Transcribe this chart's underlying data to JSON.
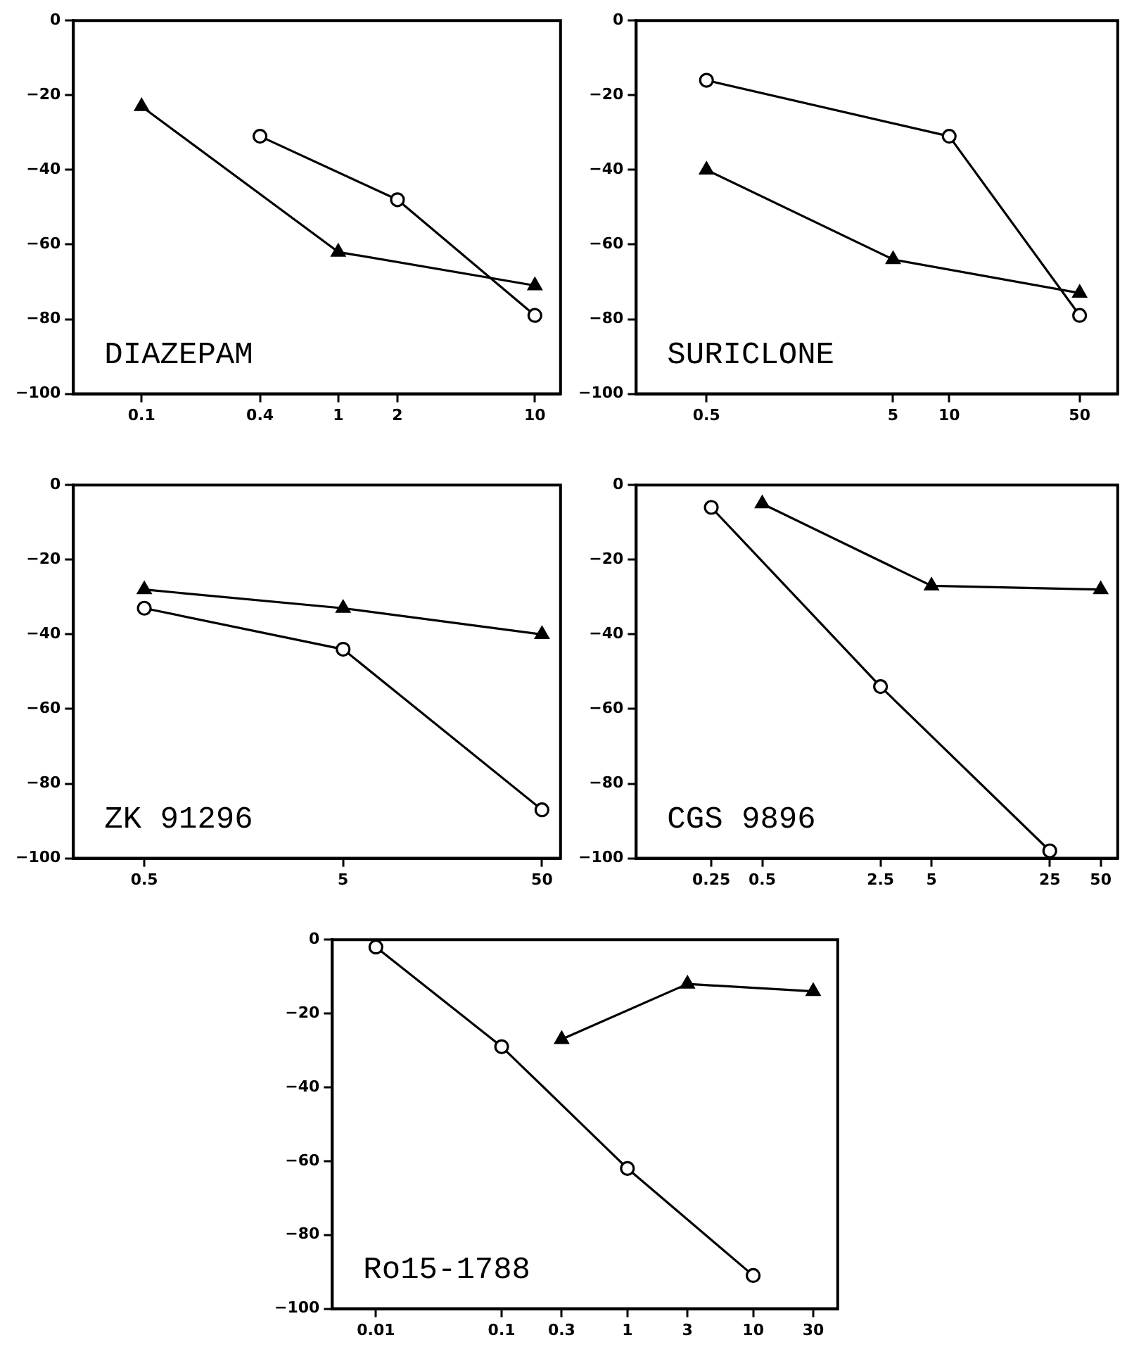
{
  "chart_data": [
    {
      "type": "line",
      "title": "DIAZEPAM",
      "log": "x",
      "xlim": [
        0.045,
        13.5
      ],
      "xticks": [
        0.1,
        0.4,
        1,
        2,
        10
      ],
      "ylim": [
        -100,
        0
      ],
      "yticks": [
        0,
        -20,
        -40,
        -60,
        -80,
        -100
      ],
      "series": [
        {
          "color": "#000000",
          "marker": "triangle",
          "x": [
            0.1,
            1,
            10
          ],
          "values": [
            -23,
            -62,
            -71
          ]
        },
        {
          "color": "#000000",
          "marker": "circle",
          "x": [
            0.4,
            2,
            10
          ],
          "values": [
            -31,
            -48,
            -79
          ]
        }
      ]
    },
    {
      "type": "line",
      "title": "SURICLONE",
      "log": "x",
      "xlim": [
        0.21,
        80
      ],
      "xticks": [
        0.5,
        5,
        10,
        50
      ],
      "ylim": [
        -100,
        0
      ],
      "yticks": [
        0,
        -20,
        -40,
        -60,
        -80,
        -100
      ],
      "series": [
        {
          "color": "#000000",
          "marker": "triangle",
          "x": [
            0.5,
            5,
            50
          ],
          "values": [
            -40,
            -64,
            -73
          ]
        },
        {
          "color": "#000000",
          "marker": "circle",
          "x": [
            0.5,
            10,
            50
          ],
          "values": [
            -16,
            -31,
            -79
          ]
        }
      ]
    },
    {
      "type": "line",
      "title": "ZK 91296",
      "log": "x",
      "xlim": [
        0.22,
        62
      ],
      "xticks": [
        0.5,
        5,
        50
      ],
      "ylim": [
        -100,
        0
      ],
      "yticks": [
        0,
        -20,
        -40,
        -60,
        -80,
        -100
      ],
      "series": [
        {
          "color": "#000000",
          "marker": "triangle",
          "x": [
            0.5,
            5,
            50
          ],
          "values": [
            -28,
            -33,
            -40
          ]
        },
        {
          "color": "#000000",
          "marker": "circle",
          "x": [
            0.5,
            5,
            50
          ],
          "values": [
            -33,
            -44,
            -87
          ]
        }
      ]
    },
    {
      "type": "line",
      "title": "CGS 9896",
      "log": "x",
      "xlim": [
        0.09,
        63
      ],
      "xticks": [
        0.25,
        0.5,
        2.5,
        5,
        25,
        50
      ],
      "ylim": [
        -100,
        0
      ],
      "yticks": [
        0,
        -20,
        -40,
        -60,
        -80,
        -100
      ],
      "series": [
        {
          "color": "#000000",
          "marker": "triangle",
          "x": [
            0.5,
            5,
            50
          ],
          "values": [
            -5,
            -27,
            -28
          ]
        },
        {
          "color": "#000000",
          "marker": "circle",
          "x": [
            0.25,
            2.5,
            25
          ],
          "values": [
            -6,
            -54,
            -98
          ]
        }
      ]
    },
    {
      "type": "line",
      "title": "Ro15-1788",
      "log": "x",
      "xlim": [
        0.0045,
        47
      ],
      "xticks": [
        0.01,
        0.1,
        0.3,
        1,
        3,
        10,
        30
      ],
      "ylim": [
        -100,
        0
      ],
      "yticks": [
        0,
        -20,
        -40,
        -60,
        -80,
        -100
      ],
      "series": [
        {
          "color": "#000000",
          "marker": "triangle",
          "x": [
            0.3,
            3,
            30
          ],
          "values": [
            -27,
            -12,
            -14
          ]
        },
        {
          "color": "#000000",
          "marker": "circle",
          "x": [
            0.01,
            0.1,
            1,
            10
          ],
          "values": [
            -2,
            -29,
            -62,
            -91
          ]
        }
      ]
    }
  ]
}
